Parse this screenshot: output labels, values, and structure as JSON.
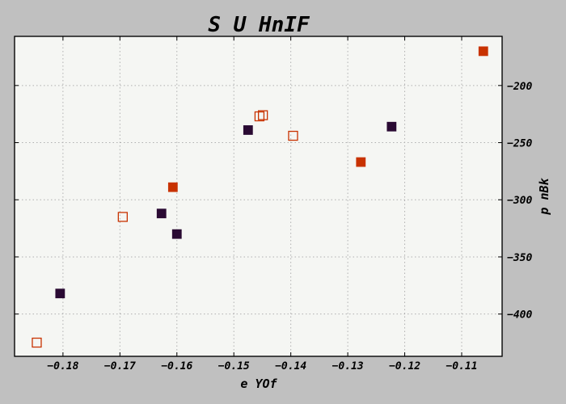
{
  "chart_data": {
    "type": "scatter",
    "title": "S  U HnIF",
    "xlabel": "e YOf",
    "ylabel": "p nBk",
    "xlim": [
      -0.1885,
      -0.1029
    ],
    "ylim": [
      -437,
      -157
    ],
    "xticks": [
      -0.18,
      -0.17,
      -0.16,
      -0.15,
      -0.14,
      -0.13,
      -0.12,
      -0.11
    ],
    "xtick_labels": [
      "−0.18",
      "−0.17",
      "−0.16",
      "−0.15",
      "−0.14",
      "−0.13",
      "−0.12",
      "−0.11"
    ],
    "yticks": [
      -200,
      -250,
      -300,
      -350,
      -400
    ],
    "ytick_labels": [
      "−200",
      "−250",
      "−300",
      "−350",
      "−400"
    ],
    "y_axis_side": "right",
    "grid": true,
    "series": [
      {
        "marker": "filled-square",
        "color": "#2a0a33",
        "points": [
          {
            "x": -0.1805,
            "y": -382
          },
          {
            "x": -0.1627,
            "y": -312
          },
          {
            "x": -0.16,
            "y": -330
          },
          {
            "x": -0.1475,
            "y": -239
          },
          {
            "x": -0.1223,
            "y": -236
          }
        ]
      },
      {
        "marker": "filled-square",
        "color": "#c83200",
        "points": [
          {
            "x": -0.1607,
            "y": -289
          },
          {
            "x": -0.1277,
            "y": -267
          },
          {
            "x": -0.1062,
            "y": -170
          }
        ]
      },
      {
        "marker": "open-square",
        "color": "#c83200",
        "points": [
          {
            "x": -0.1846,
            "y": -425
          },
          {
            "x": -0.1695,
            "y": -315
          },
          {
            "x": -0.1455,
            "y": -227
          },
          {
            "x": -0.1449,
            "y": -226
          },
          {
            "x": -0.1396,
            "y": -244
          }
        ]
      }
    ]
  }
}
